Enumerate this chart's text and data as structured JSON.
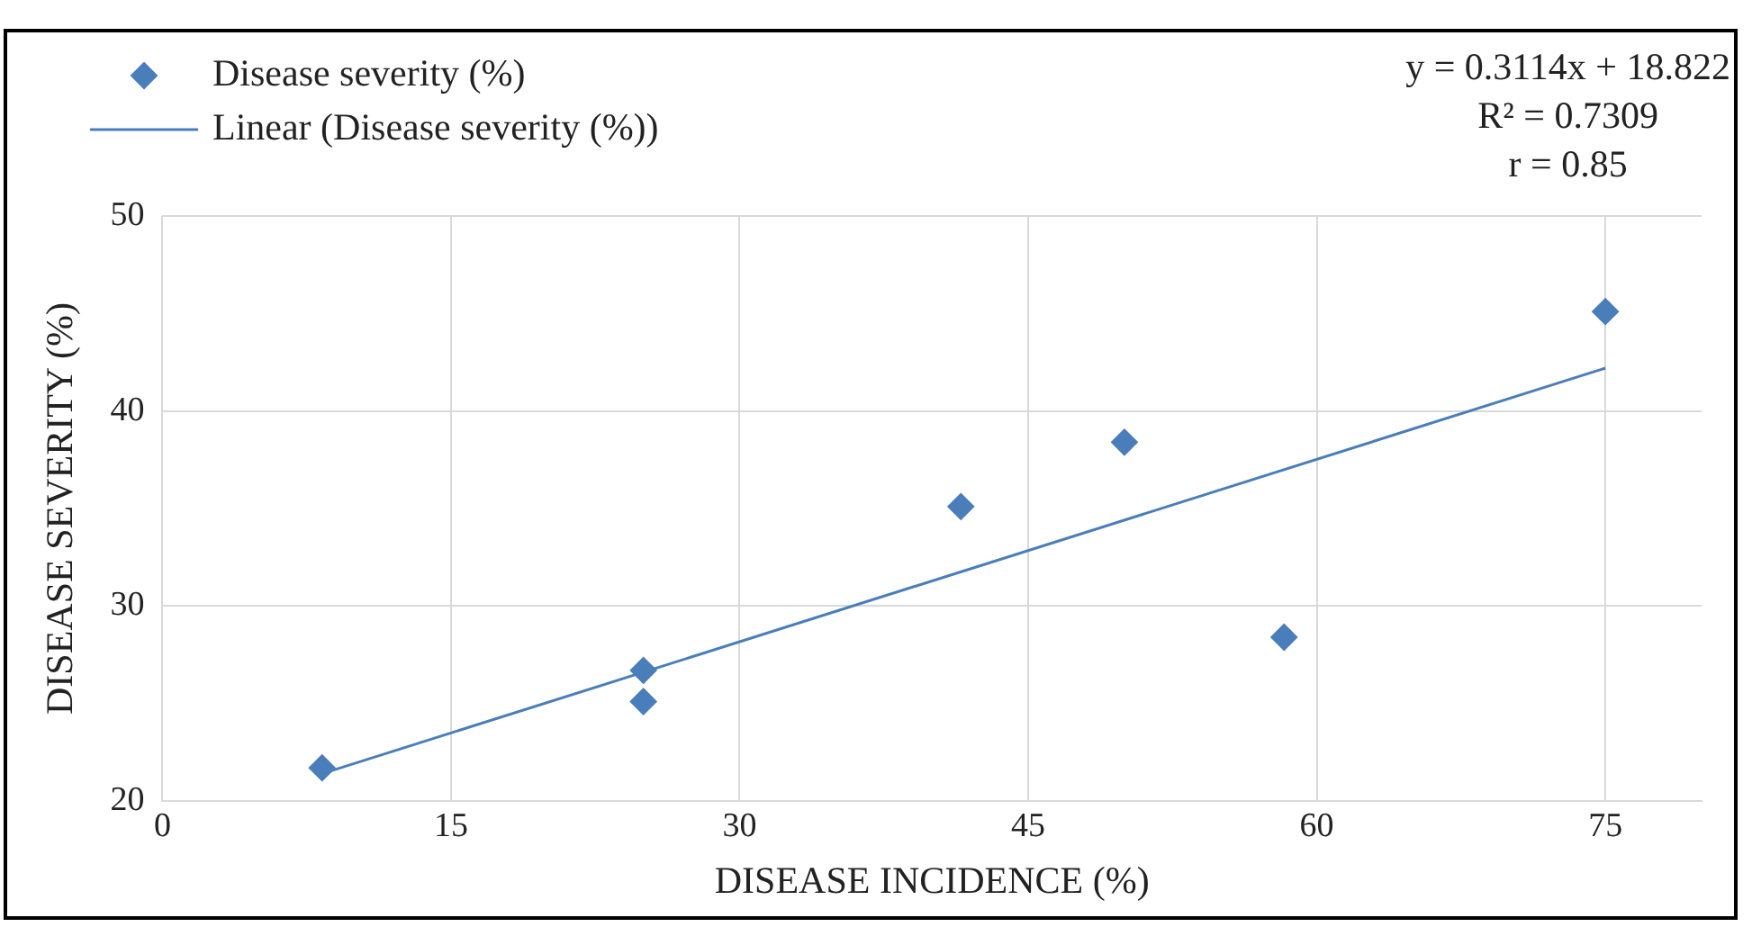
{
  "chart_data": {
    "type": "scatter",
    "xlabel": "DISEASE INCIDENCE (%)",
    "ylabel": "DISEASE SEVERITY (%)",
    "series": [
      {
        "name": "Disease severity (%)",
        "color": "#4a7ebb",
        "marker": "diamond",
        "x": [
          8.3,
          25,
          25,
          41.5,
          50,
          58.3,
          75
        ],
        "values": [
          21.7,
          26.7,
          25.1,
          35.1,
          38.4,
          28.4,
          45.1
        ]
      },
      {
        "name": "Linear (Disease severity (%))",
        "type": "line",
        "color": "#4a7ebb",
        "marker": "none",
        "line_style": "solid",
        "x": [
          8.3,
          75
        ],
        "values": [
          21.4,
          42.2
        ]
      }
    ],
    "xlim": [
      0,
      80
    ],
    "xticks": [
      0,
      15,
      30,
      45,
      60,
      75
    ],
    "ylim": [
      20,
      50
    ],
    "yticks": [
      20,
      30,
      40,
      50
    ],
    "grid": true,
    "legend": "top left",
    "annotations": [
      "y = 0.3114x + 18.822",
      "R² = 0.7309",
      "r = 0.85"
    ]
  }
}
